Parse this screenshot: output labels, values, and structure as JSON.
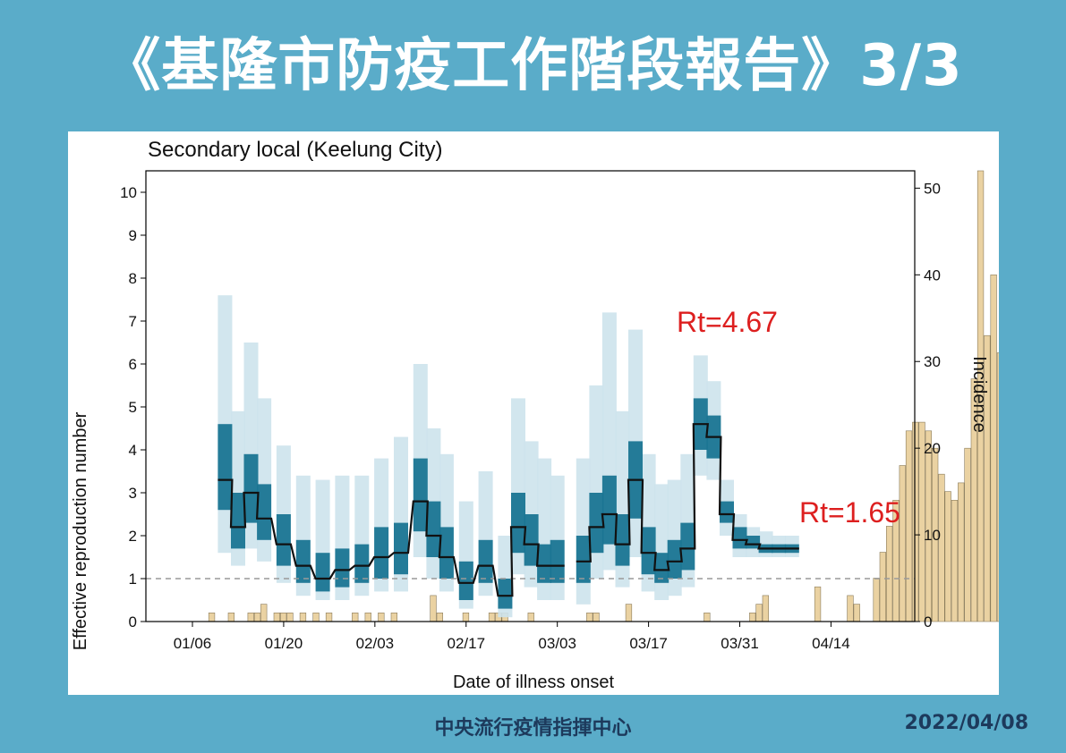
{
  "header": {
    "title": "《基隆市防疫工作階段報告》3/3"
  },
  "footer": {
    "org": "中央流行疫情指揮中心",
    "date": "2022/04/08"
  },
  "colors": {
    "background": "#5aacc9",
    "ci_outer": "#cde3ec",
    "ci_inner": "#1a7592",
    "rt_line": "#111111",
    "incidence_bars": "#ead2a2",
    "threshold": "#999999",
    "annotation": "#dd1f1f"
  },
  "chart_data": {
    "type": "bar",
    "title": "Secondary local (Keelung City)",
    "xlabel": "Date of illness onset",
    "ylabel": "Effective reproduction number",
    "y2label": "Incidence",
    "ylim": [
      0,
      10.5
    ],
    "y2lim": [
      0,
      52
    ],
    "yticks": [
      "0",
      "1",
      "2",
      "3",
      "4",
      "5",
      "6",
      "7",
      "8",
      "9",
      "10"
    ],
    "y2ticks": [
      "0",
      "10",
      "20",
      "30",
      "40",
      "50"
    ],
    "xticks": [
      "01/06",
      "01/20",
      "02/03",
      "02/17",
      "03/03",
      "03/17",
      "03/31",
      "04/14"
    ],
    "x_start": "2022-01-01",
    "threshold": 1,
    "annotations": [
      "Rt=4.67",
      "Rt=1.65"
    ],
    "incidence": [
      0,
      0,
      0,
      1,
      0,
      0,
      1,
      0,
      0,
      1,
      1,
      2,
      0,
      1,
      1,
      1,
      0,
      1,
      0,
      1,
      0,
      1,
      0,
      0,
      0,
      1,
      0,
      1,
      0,
      1,
      0,
      1,
      0,
      0,
      0,
      0,
      0,
      3,
      1,
      0,
      0,
      0,
      1,
      0,
      0,
      0,
      1,
      1,
      1,
      0,
      0,
      0,
      1,
      0,
      0,
      0,
      0,
      0,
      0,
      0,
      0,
      1,
      1,
      0,
      0,
      0,
      0,
      2,
      0,
      0,
      0,
      0,
      0,
      0,
      0,
      0,
      0,
      0,
      0,
      1,
      0,
      0,
      0,
      0,
      0,
      0,
      1,
      2,
      3,
      0,
      0,
      0,
      0,
      0,
      0,
      0,
      4,
      0,
      0,
      0,
      0,
      3,
      2,
      0,
      0,
      5,
      8,
      11,
      14,
      18,
      22,
      23,
      23,
      22,
      20,
      17,
      15,
      14,
      16,
      20,
      28,
      52,
      33,
      40,
      31,
      27,
      42,
      28,
      28,
      13,
      4,
      0,
      0,
      0,
      0,
      0,
      0,
      0,
      0,
      0,
      0,
      0,
      0,
      0
    ],
    "rt_dates": [
      "01/04",
      "01/06",
      "01/08",
      "01/10",
      "01/12",
      "01/15",
      "01/18",
      "01/21",
      "01/24",
      "01/27",
      "01/30",
      "02/02",
      "02/05",
      "02/07",
      "02/09",
      "02/12",
      "02/15",
      "02/18",
      "02/20",
      "02/22",
      "02/24",
      "02/26",
      "02/28",
      "03/02",
      "03/04",
      "03/06",
      "03/08",
      "03/10",
      "03/12",
      "03/14",
      "03/16",
      "03/18",
      "03/20",
      "03/22",
      "03/24",
      "03/26",
      "03/28",
      "03/30",
      "04/01",
      "04/03"
    ],
    "rt_mean": [
      null,
      3.3,
      2.2,
      3.0,
      2.4,
      1.8,
      1.3,
      1.0,
      1.2,
      1.3,
      1.5,
      1.6,
      2.8,
      2.0,
      1.5,
      0.9,
      1.3,
      0.6,
      2.2,
      1.8,
      1.3,
      1.3,
      null,
      1.4,
      2.2,
      2.5,
      1.8,
      3.3,
      1.6,
      1.2,
      1.4,
      1.7,
      4.6,
      4.3,
      2.5,
      1.9,
      1.8,
      1.7,
      1.7,
      1.7
    ],
    "rt_ci95_low": [
      null,
      1.6,
      1.3,
      1.7,
      1.4,
      0.9,
      0.6,
      0.5,
      0.5,
      0.6,
      0.7,
      0.7,
      1.5,
      1.0,
      0.7,
      0.3,
      0.6,
      0.1,
      1.1,
      0.8,
      0.5,
      0.5,
      null,
      0.4,
      1.0,
      1.2,
      0.8,
      1.5,
      0.7,
      0.5,
      0.6,
      0.8,
      3.4,
      3.3,
      2.0,
      1.5,
      1.5,
      1.5,
      1.5,
      1.5
    ],
    "rt_ci95_high": [
      null,
      7.6,
      4.9,
      6.5,
      5.2,
      4.1,
      3.4,
      3.3,
      3.4,
      3.4,
      3.8,
      4.3,
      6.0,
      4.5,
      3.9,
      2.8,
      3.5,
      2.0,
      5.2,
      4.2,
      3.8,
      3.4,
      null,
      3.8,
      5.5,
      7.2,
      4.9,
      6.8,
      3.9,
      3.2,
      3.3,
      3.9,
      6.2,
      5.6,
      3.3,
      2.5,
      2.2,
      2.1,
      2.0,
      2.0
    ],
    "rt_ci50_low": [
      null,
      2.6,
      1.7,
      2.3,
      1.9,
      1.3,
      0.9,
      0.7,
      0.8,
      0.9,
      1.0,
      1.1,
      2.1,
      1.5,
      1.0,
      0.5,
      0.9,
      0.3,
      1.6,
      1.3,
      0.9,
      0.9,
      null,
      0.9,
      1.6,
      1.8,
      1.3,
      2.4,
      1.1,
      0.9,
      1.0,
      1.2,
      4.0,
      3.8,
      2.3,
      1.7,
      1.7,
      1.6,
      1.6,
      1.6
    ],
    "rt_ci50_high": [
      null,
      4.6,
      3.0,
      3.9,
      3.2,
      2.5,
      1.9,
      1.6,
      1.7,
      1.8,
      2.2,
      2.3,
      3.8,
      2.8,
      2.2,
      1.4,
      1.9,
      1.0,
      3.0,
      2.5,
      1.8,
      1.9,
      null,
      2.0,
      3.0,
      3.4,
      2.5,
      4.2,
      2.2,
      1.6,
      1.9,
      2.3,
      5.2,
      4.8,
      2.8,
      2.2,
      2.0,
      1.8,
      1.8,
      1.8
    ]
  }
}
